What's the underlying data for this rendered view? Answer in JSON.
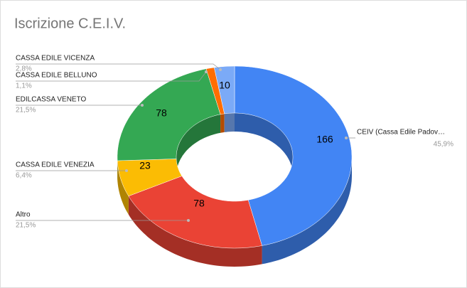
{
  "chart_data": {
    "type": "pie",
    "title": "Iscrizione C.E.I.V.",
    "donut": true,
    "three_d": true,
    "categories": [
      "CEIV (Cassa Edile Padov…",
      "Altro",
      "CASSA EDILE VENEZIA",
      "EDILCASSA VENETO",
      "CASSA EDILE BELLUNO",
      "CASSA EDILE VICENZA"
    ],
    "values": [
      166,
      78,
      23,
      78,
      4,
      10
    ],
    "value_labels": [
      "166",
      "78",
      "23",
      "78",
      null,
      "10"
    ],
    "percent_labels": [
      "45,9%",
      "21,5%",
      "6,4%",
      "21,5%",
      "1,1%",
      "2,8%"
    ],
    "colors": [
      "#4285f4",
      "#ea4335",
      "#fbbc04",
      "#34a853",
      "#ff6d01",
      "#7baaf7"
    ]
  }
}
